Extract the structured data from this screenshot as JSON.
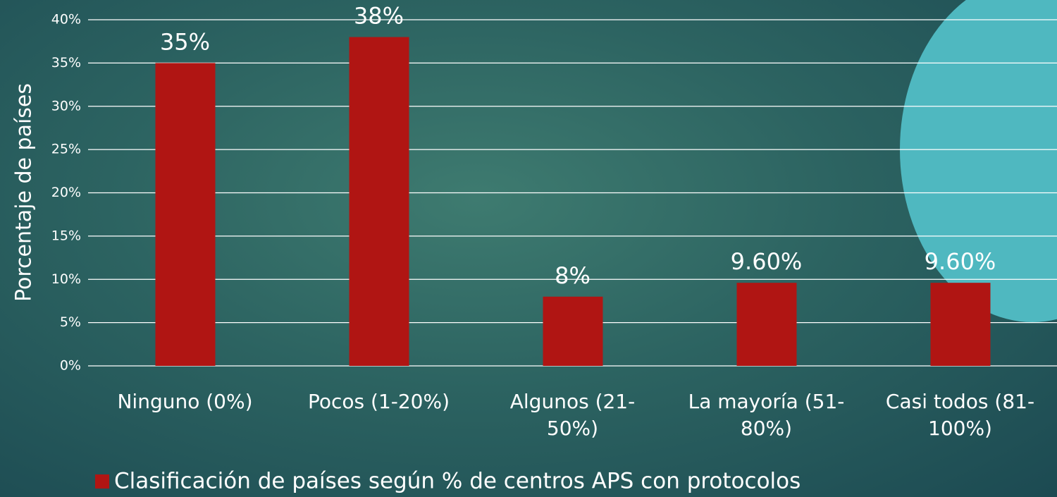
{
  "chart_data": {
    "type": "bar",
    "y_label": "Porcentaje de países",
    "categories": [
      "Ninguno (0%)",
      "Pocos (1-20%)",
      "Algunos (21-50%)",
      "La mayoría (51-80%)",
      "Casi todos (81-100%)"
    ],
    "series": [
      {
        "name": "Clasificación de países según % de centros APS con protocolos",
        "color": "#b01513",
        "values": [
          35,
          38,
          8,
          9.6,
          9.6
        ],
        "value_labels": [
          "35%",
          "38%",
          "8%",
          "9.60%",
          "9.60%"
        ]
      }
    ],
    "ylim": [
      0,
      40
    ],
    "yticks": [
      {
        "value": 0,
        "label": "0%"
      },
      {
        "value": 5,
        "label": "5%"
      },
      {
        "value": 10,
        "label": "10%"
      },
      {
        "value": 15,
        "label": "15%"
      },
      {
        "value": 20,
        "label": "20%"
      },
      {
        "value": 25,
        "label": "25%"
      },
      {
        "value": 30,
        "label": "30%"
      },
      {
        "value": 35,
        "label": "35%"
      },
      {
        "value": 40,
        "label": "40%"
      }
    ],
    "grid": true,
    "legend": "bottom"
  }
}
